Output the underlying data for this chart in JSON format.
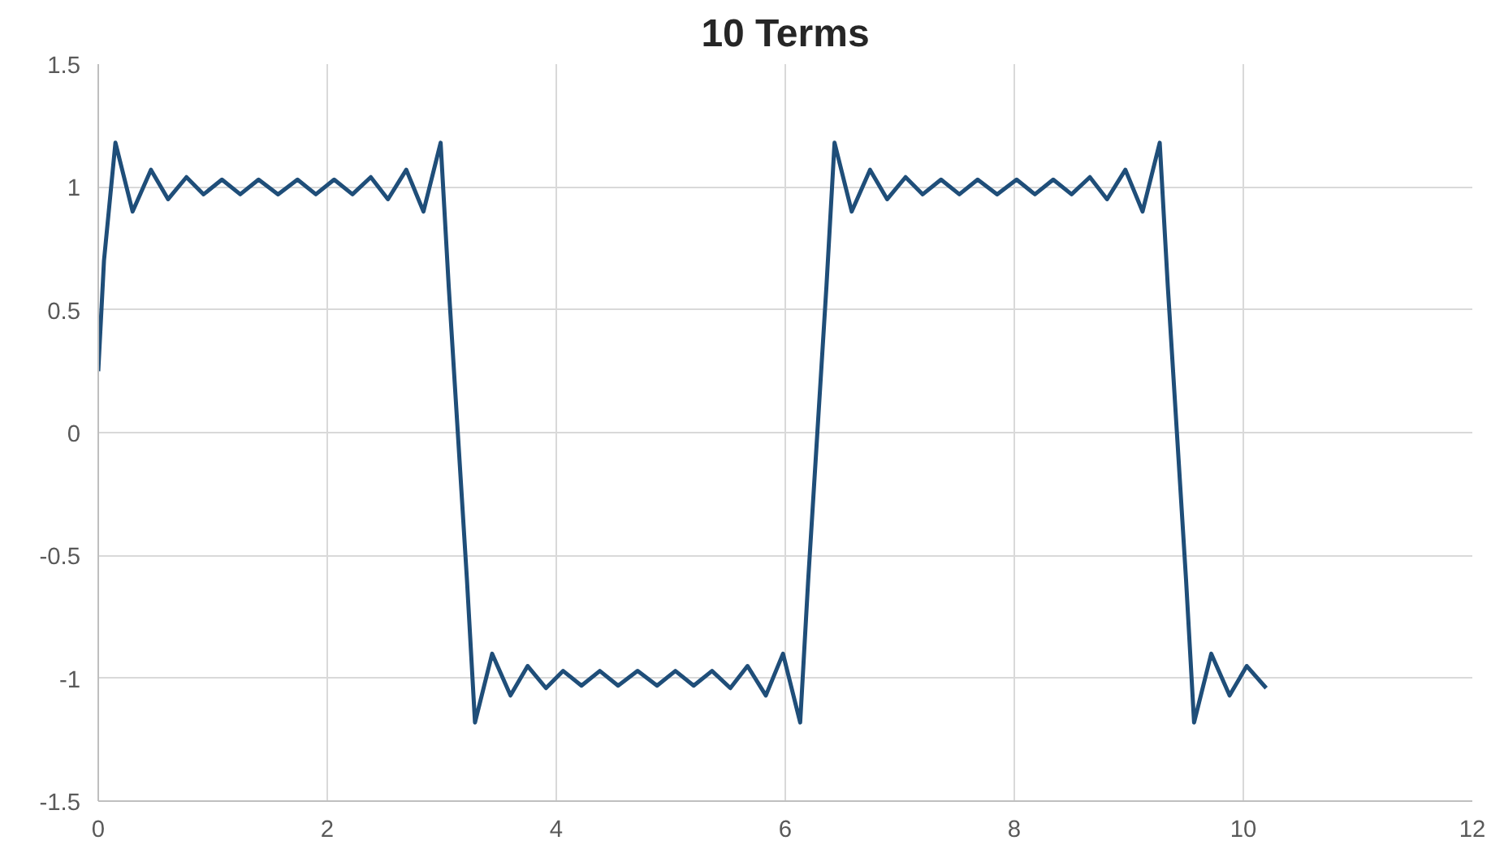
{
  "chart_data": {
    "type": "line",
    "title": "10 Terms",
    "x": [
      0,
      0.05,
      0.15,
      0.3,
      0.46,
      0.61,
      0.77,
      0.92,
      1.08,
      1.24,
      1.4,
      1.57,
      1.74,
      1.9,
      2.06,
      2.22,
      2.38,
      2.53,
      2.69,
      2.84,
      2.99,
      3.06,
      3.14,
      3.22,
      3.29,
      3.44,
      3.6,
      3.75,
      3.91,
      4.06,
      4.22,
      4.38,
      4.54,
      4.71,
      4.88,
      5.04,
      5.2,
      5.36,
      5.52,
      5.67,
      5.83,
      5.98,
      6.13,
      6.2,
      6.28,
      6.36,
      6.43,
      6.58,
      6.74,
      6.89,
      7.05,
      7.2,
      7.36,
      7.52,
      7.68,
      7.85,
      8.02,
      8.18,
      8.34,
      8.5,
      8.66,
      8.81,
      8.97,
      9.12,
      9.27,
      9.34,
      9.42,
      9.5,
      9.57,
      9.72,
      9.88,
      10.03,
      10.2
    ],
    "series": [
      {
        "color": "#1f4e79",
        "values": [
          0.25,
          0.7,
          1.18,
          0.9,
          1.07,
          0.95,
          1.04,
          0.97,
          1.03,
          0.97,
          1.03,
          0.97,
          1.03,
          0.97,
          1.03,
          0.97,
          1.04,
          0.95,
          1.07,
          0.9,
          1.18,
          0.6,
          0,
          -0.6,
          -1.18,
          -0.9,
          -1.07,
          -0.95,
          -1.04,
          -0.97,
          -1.03,
          -0.97,
          -1.03,
          -0.97,
          -1.03,
          -0.97,
          -1.03,
          -0.97,
          -1.04,
          -0.95,
          -1.07,
          -0.9,
          -1.18,
          -0.6,
          0,
          0.6,
          1.18,
          0.9,
          1.07,
          0.95,
          1.04,
          0.97,
          1.03,
          0.97,
          1.03,
          0.97,
          1.03,
          0.97,
          1.03,
          0.97,
          1.04,
          0.95,
          1.07,
          0.9,
          1.18,
          0.6,
          0,
          -0.6,
          -1.18,
          -0.9,
          -1.07,
          -0.95,
          -1.04
        ]
      }
    ],
    "xlim": [
      0,
      12
    ],
    "xticks": [
      0,
      2,
      4,
      6,
      8,
      10,
      12
    ],
    "ylim": [
      -1.5,
      1.5
    ],
    "yticks": [
      -1.5,
      -1,
      -0.5,
      0,
      0.5,
      1,
      1.5
    ],
    "grid": true,
    "marker": "none",
    "line_style": "solid"
  }
}
